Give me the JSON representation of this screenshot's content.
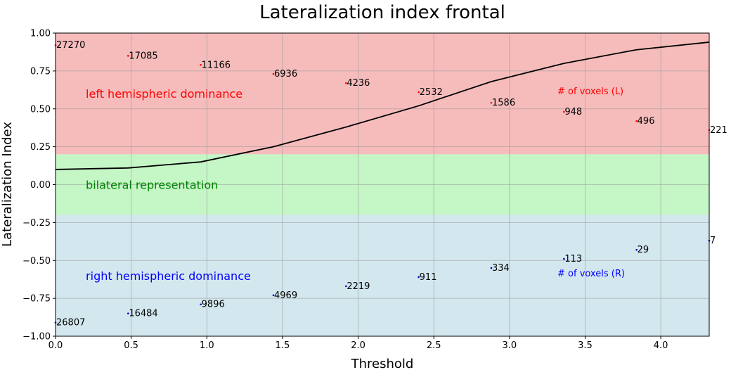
{
  "colors": {
    "left_band": "#f6bcbc",
    "bilateral_band": "#c4f6c6",
    "right_band": "#d3e7ef",
    "li_line": "#000000",
    "left_points": "#ff0000",
    "right_points": "#0000cc",
    "left_text": "#ff0000",
    "right_text": "#0000ff",
    "bilateral_text": "#008000",
    "grid": "#999999"
  },
  "chart_data": {
    "type": "line",
    "title": "Lateralization index frontal",
    "xlabel": "Threshold",
    "ylabel": "Lateralization Index",
    "xlim": [
      0.0,
      4.32
    ],
    "ylim": [
      -1.0,
      1.0
    ],
    "xticks": [
      "0.0",
      "0.5",
      "1.0",
      "1.5",
      "2.0",
      "2.5",
      "3.0",
      "3.5",
      "4.0"
    ],
    "yticks": [
      "1.00",
      "0.75",
      "0.50",
      "0.25",
      "0.00",
      "−0.25",
      "−0.50",
      "−0.75",
      "−1.00"
    ],
    "grid": true,
    "bands": [
      {
        "label": "left hemispheric dominance",
        "from": 0.2,
        "to": 1.0
      },
      {
        "label": "bilateral representation",
        "from": -0.2,
        "to": 0.2
      },
      {
        "label": "right hemispheric dominance",
        "from": -1.0,
        "to": -0.2
      }
    ],
    "annotations": {
      "left_count_label": "# of voxels (L)",
      "right_count_label": "# of voxels (R)"
    },
    "li_curve": {
      "x": [
        0.0,
        0.48,
        0.96,
        1.44,
        1.92,
        2.4,
        2.88,
        3.36,
        3.84,
        4.32
      ],
      "y": [
        0.1,
        0.11,
        0.15,
        0.25,
        0.38,
        0.52,
        0.68,
        0.8,
        0.89,
        0.94
      ]
    },
    "left_voxels": [
      {
        "x": 0.0,
        "y": 0.92,
        "label": "27270"
      },
      {
        "x": 0.48,
        "y": 0.85,
        "label": "17085"
      },
      {
        "x": 0.96,
        "y": 0.79,
        "label": "11166"
      },
      {
        "x": 1.44,
        "y": 0.73,
        "label": "6936"
      },
      {
        "x": 1.92,
        "y": 0.67,
        "label": "4236"
      },
      {
        "x": 2.4,
        "y": 0.61,
        "label": "2532"
      },
      {
        "x": 2.88,
        "y": 0.54,
        "label": "1586"
      },
      {
        "x": 3.36,
        "y": 0.48,
        "label": "948"
      },
      {
        "x": 3.84,
        "y": 0.42,
        "label": "496"
      },
      {
        "x": 4.32,
        "y": 0.36,
        "label": "221"
      }
    ],
    "right_voxels": [
      {
        "x": 0.0,
        "y": -0.91,
        "label": "26807"
      },
      {
        "x": 0.48,
        "y": -0.85,
        "label": "16484"
      },
      {
        "x": 0.96,
        "y": -0.79,
        "label": "9896"
      },
      {
        "x": 1.44,
        "y": -0.73,
        "label": "4969"
      },
      {
        "x": 1.92,
        "y": -0.67,
        "label": "2219"
      },
      {
        "x": 2.4,
        "y": -0.61,
        "label": "911"
      },
      {
        "x": 2.88,
        "y": -0.55,
        "label": "334"
      },
      {
        "x": 3.36,
        "y": -0.49,
        "label": "113"
      },
      {
        "x": 3.84,
        "y": -0.43,
        "label": "29"
      },
      {
        "x": 4.32,
        "y": -0.37,
        "label": "7"
      }
    ]
  }
}
